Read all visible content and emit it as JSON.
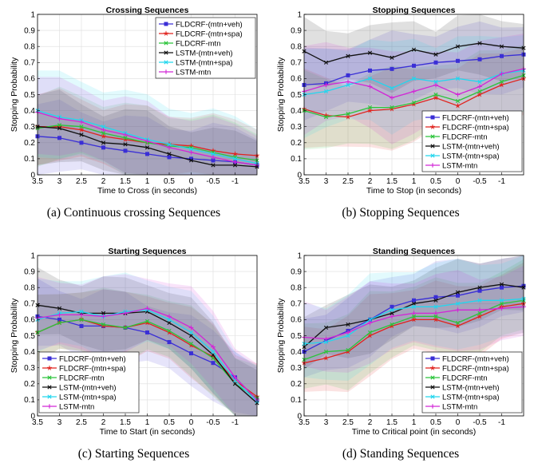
{
  "captions": {
    "a": "(a) Continuous crossing Sequences",
    "b": "(b) Stopping Sequences",
    "c": "(c) Starting Sequences",
    "d": "(d) Standing Sequences"
  },
  "series_style": [
    {
      "name": "FLDCRF-(mtn+veh)",
      "color": "#3a2fd6",
      "marker": "square"
    },
    {
      "name": "FLDCRF-(mtn+spa)",
      "color": "#e0231e",
      "marker": "star"
    },
    {
      "name": "FLDCRF-mtn",
      "color": "#2bc43a",
      "marker": "x"
    },
    {
      "name": "LSTM-(mtn+veh)",
      "color": "#111111",
      "marker": "x"
    },
    {
      "name": "LSTM-(mtn+spa)",
      "color": "#22d6ee",
      "marker": "x"
    },
    {
      "name": "LSTM-mtn",
      "color": "#d226d6",
      "marker": "plus"
    }
  ],
  "chart_data": [
    {
      "type": "line",
      "title": "Crossing Sequences",
      "xlabel": "Time to Cross (in seconds)",
      "ylabel": "Stopping Probability",
      "xlim": [
        3.5,
        -1.5
      ],
      "xreversed": true,
      "ylim": [
        0,
        1
      ],
      "xticks": [
        "3.5",
        "3",
        "2.5",
        "2",
        "1.5",
        "1",
        "0.5",
        "0",
        "-0.5",
        "-1"
      ],
      "yticks": [
        "0",
        "0.1",
        "0.2",
        "0.3",
        "0.4",
        "0.5",
        "0.6",
        "0.7",
        "0.8",
        "0.9",
        "1"
      ],
      "grid": true,
      "legend_position": "top-right",
      "x": [
        3.5,
        3.0,
        2.5,
        2.0,
        1.5,
        1.0,
        0.5,
        0.0,
        -0.5,
        -1.0,
        -1.5
      ],
      "series": [
        {
          "name": "FLDCRF-(mtn+veh)",
          "values": [
            0.24,
            0.23,
            0.2,
            0.17,
            0.15,
            0.13,
            0.11,
            0.1,
            0.09,
            0.08,
            0.06
          ],
          "band": 0.2
        },
        {
          "name": "FLDCRF-(mtn+spa)",
          "values": [
            0.3,
            0.3,
            0.28,
            0.24,
            0.22,
            0.2,
            0.19,
            0.18,
            0.15,
            0.13,
            0.12
          ],
          "band": 0.2
        },
        {
          "name": "FLDCRF-mtn",
          "values": [
            0.29,
            0.31,
            0.3,
            0.26,
            0.23,
            0.2,
            0.18,
            0.17,
            0.14,
            0.11,
            0.09
          ],
          "band": 0.2
        },
        {
          "name": "LSTM-(mtn+veh)",
          "values": [
            0.3,
            0.29,
            0.25,
            0.2,
            0.19,
            0.17,
            0.13,
            0.09,
            0.06,
            0.06,
            0.05
          ],
          "band": 0.2
        },
        {
          "name": "LSTM-(mtn+spa)",
          "values": [
            0.4,
            0.36,
            0.34,
            0.3,
            0.26,
            0.22,
            0.19,
            0.16,
            0.13,
            0.1,
            0.07
          ],
          "band": 0.25
        },
        {
          "name": "LSTM-mtn",
          "values": [
            0.39,
            0.35,
            0.33,
            0.28,
            0.25,
            0.21,
            0.17,
            0.14,
            0.11,
            0.08,
            0.06
          ],
          "band": 0.22
        }
      ]
    },
    {
      "type": "line",
      "title": "Stopping Sequences",
      "xlabel": "Time to Stop (in seconds)",
      "ylabel": "Stopping Probability",
      "xlim": [
        3.5,
        -1.5
      ],
      "xreversed": true,
      "ylim": [
        0,
        1
      ],
      "xticks": [
        "3.5",
        "3",
        "2.5",
        "2",
        "1.5",
        "1",
        "0.5",
        "0",
        "-0.5",
        "-1"
      ],
      "yticks": [
        "0",
        "0.1",
        "0.2",
        "0.3",
        "0.4",
        "0.5",
        "0.6",
        "0.7",
        "0.8",
        "0.9",
        "1"
      ],
      "grid": true,
      "legend_position": "bottom-right",
      "x": [
        3.5,
        3.0,
        2.5,
        2.0,
        1.5,
        1.0,
        0.5,
        0.0,
        -0.5,
        -1.0,
        -1.5
      ],
      "series": [
        {
          "name": "FLDCRF-(mtn+veh)",
          "values": [
            0.56,
            0.57,
            0.62,
            0.65,
            0.66,
            0.68,
            0.7,
            0.71,
            0.72,
            0.74,
            0.75
          ],
          "band": 0.2
        },
        {
          "name": "FLDCRF-(mtn+spa)",
          "values": [
            0.41,
            0.37,
            0.36,
            0.4,
            0.41,
            0.44,
            0.48,
            0.43,
            0.5,
            0.56,
            0.6
          ],
          "band": 0.22
        },
        {
          "name": "FLDCRF-mtn",
          "values": [
            0.4,
            0.36,
            0.38,
            0.42,
            0.42,
            0.45,
            0.5,
            0.46,
            0.52,
            0.58,
            0.62
          ],
          "band": 0.22
        },
        {
          "name": "LSTM-(mtn+veh)",
          "values": [
            0.77,
            0.7,
            0.74,
            0.76,
            0.73,
            0.78,
            0.75,
            0.8,
            0.82,
            0.8,
            0.79
          ],
          "band": 0.18
        },
        {
          "name": "LSTM-(mtn+spa)",
          "values": [
            0.5,
            0.52,
            0.56,
            0.6,
            0.54,
            0.6,
            0.58,
            0.6,
            0.58,
            0.63,
            0.65
          ],
          "band": 0.25
        },
        {
          "name": "LSTM-mtn",
          "values": [
            0.52,
            0.56,
            0.58,
            0.55,
            0.48,
            0.52,
            0.56,
            0.5,
            0.55,
            0.63,
            0.66
          ],
          "band": 0.25
        }
      ]
    },
    {
      "type": "line",
      "title": "Starting Sequences",
      "xlabel": "Time to Start (in seconds)",
      "ylabel": "Stopping Probability",
      "xlim": [
        3.5,
        -1.5
      ],
      "xreversed": true,
      "ylim": [
        0,
        1
      ],
      "xticks": [
        "3.5",
        "3",
        "2.5",
        "2",
        "1.5",
        "1",
        "0.5",
        "0",
        "-0.5",
        "-1"
      ],
      "yticks": [
        "0",
        "0.1",
        "0.2",
        "0.3",
        "0.4",
        "0.5",
        "0.6",
        "0.7",
        "0.8",
        "0.9",
        "1"
      ],
      "grid": true,
      "legend_position": "bottom-left",
      "x": [
        3.5,
        3.0,
        2.5,
        2.0,
        1.5,
        1.0,
        0.5,
        0.0,
        -0.5,
        -1.0,
        -1.5
      ],
      "series": [
        {
          "name": "FLDCRF-(mtn+veh)",
          "values": [
            0.62,
            0.6,
            0.56,
            0.56,
            0.55,
            0.52,
            0.46,
            0.39,
            0.33,
            0.24,
            0.1
          ],
          "band": 0.2
        },
        {
          "name": "FLDCRF-(mtn+spa)",
          "values": [
            0.52,
            0.58,
            0.6,
            0.56,
            0.55,
            0.58,
            0.52,
            0.44,
            0.37,
            0.22,
            0.12
          ],
          "band": 0.2
        },
        {
          "name": "FLDCRF-mtn",
          "values": [
            0.52,
            0.58,
            0.6,
            0.57,
            0.55,
            0.59,
            0.53,
            0.45,
            0.36,
            0.2,
            0.11
          ],
          "band": 0.2
        },
        {
          "name": "LSTM-(mtn+veh)",
          "values": [
            0.69,
            0.67,
            0.64,
            0.64,
            0.64,
            0.65,
            0.58,
            0.5,
            0.38,
            0.2,
            0.08
          ],
          "band": 0.2
        },
        {
          "name": "LSTM-(mtn+spa)",
          "values": [
            0.6,
            0.64,
            0.65,
            0.62,
            0.65,
            0.66,
            0.6,
            0.52,
            0.4,
            0.22,
            0.09
          ],
          "band": 0.22
        },
        {
          "name": "LSTM-mtn",
          "values": [
            0.61,
            0.63,
            0.63,
            0.62,
            0.64,
            0.67,
            0.62,
            0.55,
            0.43,
            0.24,
            0.1
          ],
          "band": 0.22
        }
      ]
    },
    {
      "type": "line",
      "title": "Standing Sequences",
      "xlabel": "Time to Critical point (in seconds)",
      "ylabel": "Stopping Probability",
      "xlim": [
        3.5,
        -1.5
      ],
      "xreversed": true,
      "ylim": [
        0,
        1
      ],
      "xticks": [
        "3.5",
        "3",
        "2.5",
        "2",
        "1.5",
        "1",
        "0.5",
        "0",
        "-0.5",
        "-1"
      ],
      "yticks": [
        "0",
        "0.1",
        "0.2",
        "0.3",
        "0.4",
        "0.5",
        "0.6",
        "0.7",
        "0.8",
        "0.9",
        "1"
      ],
      "grid": true,
      "legend_position": "bottom-right",
      "x": [
        3.5,
        3.0,
        2.5,
        2.0,
        1.5,
        1.0,
        0.5,
        0.0,
        -0.5,
        -1.0,
        -1.5
      ],
      "series": [
        {
          "name": "FLDCRF-(mtn+veh)",
          "values": [
            0.4,
            0.47,
            0.53,
            0.6,
            0.68,
            0.72,
            0.74,
            0.75,
            0.78,
            0.8,
            0.81
          ],
          "band": 0.2
        },
        {
          "name": "FLDCRF-(mtn+spa)",
          "values": [
            0.33,
            0.36,
            0.4,
            0.5,
            0.56,
            0.6,
            0.6,
            0.56,
            0.62,
            0.68,
            0.7
          ],
          "band": 0.22
        },
        {
          "name": "FLDCRF-mtn",
          "values": [
            0.35,
            0.4,
            0.41,
            0.52,
            0.57,
            0.62,
            0.62,
            0.58,
            0.64,
            0.7,
            0.72
          ],
          "band": 0.22
        },
        {
          "name": "LSTM-(mtn+veh)",
          "values": [
            0.43,
            0.55,
            0.57,
            0.6,
            0.64,
            0.7,
            0.72,
            0.77,
            0.8,
            0.82,
            0.8
          ],
          "band": 0.18
        },
        {
          "name": "LSTM-(mtn+spa)",
          "values": [
            0.45,
            0.46,
            0.5,
            0.6,
            0.66,
            0.68,
            0.68,
            0.7,
            0.72,
            0.72,
            0.73
          ],
          "band": 0.25
        },
        {
          "name": "LSTM-mtn",
          "values": [
            0.49,
            0.48,
            0.52,
            0.58,
            0.62,
            0.64,
            0.64,
            0.66,
            0.66,
            0.67,
            0.68
          ],
          "band": 0.22
        }
      ]
    }
  ]
}
